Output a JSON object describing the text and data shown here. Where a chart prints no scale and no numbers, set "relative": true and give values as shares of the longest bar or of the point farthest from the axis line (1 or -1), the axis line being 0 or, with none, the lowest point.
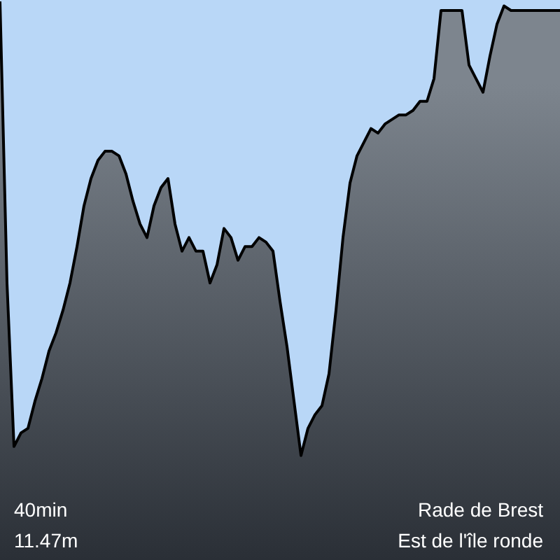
{
  "chart_data": {
    "type": "area",
    "relative": true,
    "color": "#7d858e",
    "categories": [
      null,
      null,
      null,
      null,
      null,
      null,
      null,
      null,
      null,
      null,
      null,
      null,
      null,
      null,
      null,
      null,
      null,
      null,
      null,
      null,
      null,
      null,
      null,
      null,
      null,
      null,
      null,
      null,
      null,
      null,
      null,
      null,
      null,
      null,
      null,
      null,
      null,
      null,
      null,
      null,
      null,
      null,
      null,
      null,
      null,
      null,
      null,
      null,
      null,
      null,
      null,
      null,
      null,
      null,
      null,
      null,
      null,
      null,
      null,
      null,
      null,
      null,
      null,
      null,
      null,
      null,
      null,
      null,
      null,
      null,
      null,
      null,
      null,
      null,
      null,
      null,
      null,
      null,
      null,
      null,
      null
    ],
    "values": [
      1.0,
      0.38,
      0.02,
      0.05,
      0.06,
      0.12,
      0.17,
      0.23,
      0.27,
      0.32,
      0.38,
      0.46,
      0.55,
      0.61,
      0.65,
      0.67,
      0.67,
      0.66,
      0.62,
      0.56,
      0.51,
      0.48,
      0.55,
      0.59,
      0.61,
      0.51,
      0.45,
      0.48,
      0.45,
      0.45,
      0.38,
      0.42,
      0.5,
      0.48,
      0.43,
      0.46,
      0.46,
      0.48,
      0.47,
      0.45,
      0.34,
      0.24,
      0.12,
      0,
      0.06,
      0.09,
      0.11,
      0.18,
      0.32,
      0.48,
      0.6,
      0.66,
      0.69,
      0.72,
      0.71,
      0.73,
      0.74,
      0.75,
      0.75,
      0.76,
      0.78,
      0.78,
      0.83,
      0.98,
      0.98,
      0.98,
      0.98,
      0.86,
      0.83,
      0.8,
      0.88,
      0.95,
      0.99,
      0.98,
      0.98,
      0.98,
      0.98,
      0.98,
      0.98,
      0.98,
      0.98
    ],
    "annotations": [
      "40min",
      "Rade de Brest",
      "11.47m",
      "Est de l'île ronde"
    ],
    "legend": false
  }
}
